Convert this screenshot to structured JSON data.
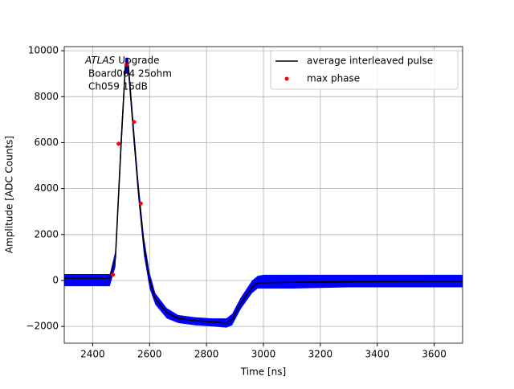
{
  "chart_data": {
    "type": "line",
    "xlabel": "Time [ns]",
    "ylabel": "Amplitude [ADC Counts]",
    "annotation": {
      "italic": "ATLAS",
      "lines": [
        "Upgrade",
        "Board004 25ohm",
        "Ch059 15dB"
      ]
    },
    "xlim": [
      2300,
      3700
    ],
    "ylim": [
      -2730,
      10180
    ],
    "xticks": [
      2400,
      2600,
      2800,
      3000,
      3200,
      3400,
      3600
    ],
    "yticks": [
      {
        "value": -2000,
        "label": "−2000"
      },
      0,
      2000,
      4000,
      6000,
      8000,
      10000
    ],
    "grid": true,
    "legend": "upper right",
    "band": {
      "color": "#0000ff",
      "x": [
        2300,
        2460,
        2480,
        2500,
        2515,
        2525,
        2540,
        2560,
        2580,
        2600,
        2620,
        2660,
        2700,
        2760,
        2820,
        2870,
        2890,
        2920,
        2960,
        2980,
        3000,
        3100,
        3300,
        3700
      ],
      "upper": [
        280,
        280,
        1300,
        6500,
        9700,
        9700,
        7400,
        4400,
        1900,
        350,
        -550,
        -1200,
        -1500,
        -1600,
        -1650,
        -1650,
        -1450,
        -750,
        0,
        200,
        250,
        250,
        250,
        250
      ],
      "lower": [
        -250,
        -250,
        600,
        5500,
        9000,
        9000,
        6600,
        3600,
        1100,
        -350,
        -1050,
        -1650,
        -1850,
        -1950,
        -2000,
        -2050,
        -1950,
        -1250,
        -550,
        -350,
        -350,
        -350,
        -300,
        -300
      ]
    },
    "series": [
      {
        "name": "average interleaved pulse",
        "color": "#000000",
        "x": [
          2300,
          2460,
          2480,
          2500,
          2515,
          2525,
          2540,
          2560,
          2580,
          2600,
          2620,
          2660,
          2700,
          2760,
          2820,
          2870,
          2890,
          2920,
          2960,
          2980,
          3000,
          3100,
          3300,
          3700
        ],
        "values": [
          100,
          100,
          1000,
          6000,
          9400,
          9400,
          7000,
          4000,
          1500,
          0,
          -800,
          -1400,
          -1650,
          -1750,
          -1800,
          -1850,
          -1700,
          -1000,
          -300,
          -100,
          -100,
          -80,
          -50,
          -30
        ]
      },
      {
        "name": "max phase",
        "color": "#ff0000",
        "marker": "dot",
        "x": [
          2471,
          2491,
          2519,
          2545,
          2569
        ],
        "values": [
          250,
          5950,
          9400,
          6900,
          3350
        ]
      }
    ]
  }
}
